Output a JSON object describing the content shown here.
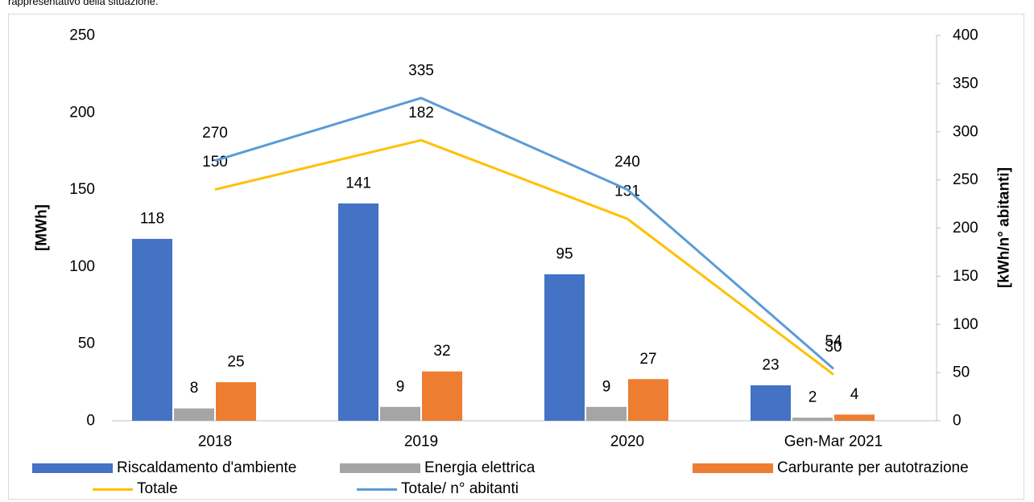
{
  "caption": "rappresentativo della situazione.",
  "chart_data": {
    "type": "bar",
    "categories": [
      "2018",
      "2019",
      "2020",
      "Gen-Mar 2021"
    ],
    "ylabel_left": "[MWh]",
    "ylabel_right": "[kWh/n° abitanti]",
    "ylim_left": [
      0,
      250
    ],
    "ylim_right": [
      0,
      400
    ],
    "yticks_left": [
      "0",
      "50",
      "100",
      "150",
      "200",
      "250"
    ],
    "yticks_right": [
      "0",
      "50",
      "100",
      "150",
      "200",
      "250",
      "300",
      "350",
      "400"
    ],
    "grid": false,
    "legend_position": "bottom",
    "bar_series": [
      {
        "name": "Riscaldamento d'ambiente",
        "values": [
          118,
          141,
          95,
          23
        ],
        "color": "#4472c4",
        "axis": "left"
      },
      {
        "name": "Energia elettrica",
        "values": [
          8,
          9,
          9,
          2
        ],
        "color": "#a5a5a5",
        "axis": "left"
      },
      {
        "name": "Carburante per autotrazione",
        "values": [
          25,
          32,
          27,
          4
        ],
        "color": "#ed7d31",
        "axis": "left"
      }
    ],
    "line_series": [
      {
        "name": "Totale",
        "values": [
          150,
          182,
          131,
          30
        ],
        "color": "#ffc000",
        "axis": "left"
      },
      {
        "name": "Totale/ n° abitanti",
        "values": [
          270,
          335,
          240,
          54
        ],
        "color": "#5b9bd5",
        "axis": "right"
      }
    ]
  }
}
